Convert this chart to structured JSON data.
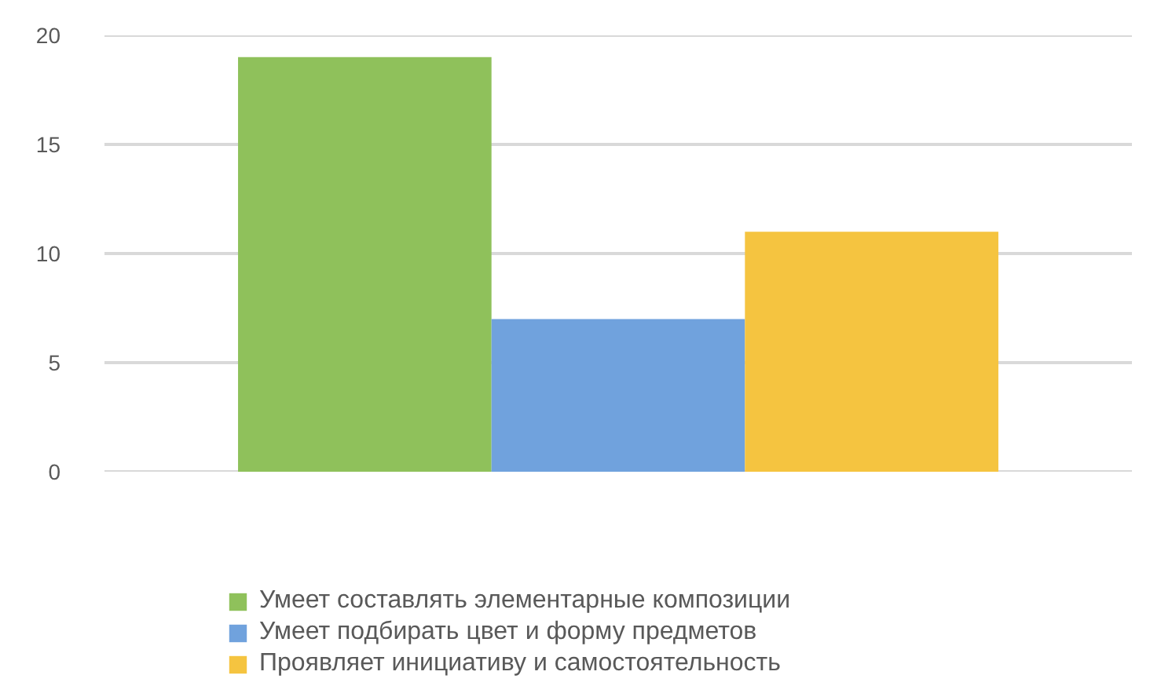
{
  "chart_data": {
    "type": "bar",
    "categories": [
      null
    ],
    "series": [
      {
        "name": "Умеет составлять элементарные композиции",
        "color": "#8fc15b",
        "values": [
          19
        ]
      },
      {
        "name": "Умеет подбирать цвет и форму предметов",
        "color": "#70a2dd",
        "values": [
          7
        ]
      },
      {
        "name": "Проявляет инициативу и самостоятельность",
        "color": "#f5c440",
        "values": [
          11
        ]
      }
    ],
    "ylim": [
      0,
      20
    ],
    "yticks": [
      0,
      5,
      10,
      15,
      20
    ],
    "grid": "y",
    "legend": "bottom",
    "tick_labels": "y"
  }
}
